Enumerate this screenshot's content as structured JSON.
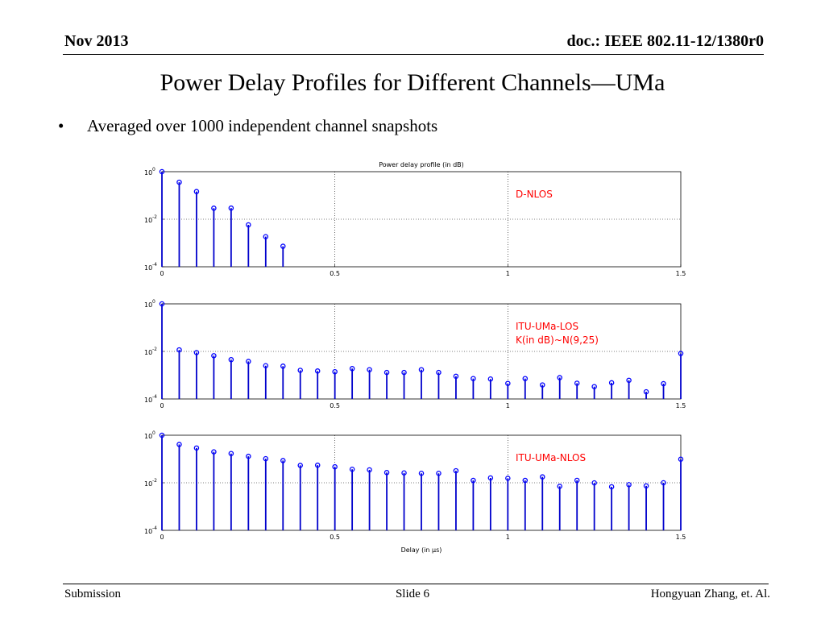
{
  "header": {
    "date": "Nov 2013",
    "doc": "doc.: IEEE 802.11-12/1380r0"
  },
  "slide_title": "Power Delay Profiles for Different Channels—UMa",
  "bullet": {
    "symbol": "•",
    "text": "Averaged over 1000 independent channel snapshots"
  },
  "footer": {
    "left": "Submission",
    "center": "Slide 6",
    "right": "Hongyuan Zhang, et. Al."
  },
  "colors": {
    "stem": "#0000cc",
    "marker": "#0000ff",
    "annotation": "#ff0000"
  },
  "chart_data": [
    {
      "type": "stem",
      "title": "Power delay profile (in dB)",
      "xlabel": "",
      "annotation": [
        "D-NLOS"
      ],
      "x_ticks": [
        "0",
        "0.5",
        "1",
        "1.5"
      ],
      "y_ticks": [
        "-4",
        "-2",
        "0"
      ],
      "xlim": [
        0,
        1.5
      ],
      "ylim_log10": [
        -4,
        0
      ],
      "y_scale": "log",
      "grid": true,
      "x": [
        0,
        0.05,
        0.1,
        0.15,
        0.2,
        0.25,
        0.3,
        0.35
      ],
      "values": [
        1.0,
        0.36,
        0.146,
        0.0292,
        0.0295,
        0.0058,
        0.00185,
        0.00073
      ]
    },
    {
      "type": "stem",
      "title": "",
      "xlabel": "",
      "annotation": [
        "ITU-UMa-LOS",
        "K(in dB)~N(9,25)"
      ],
      "x_ticks": [
        "0",
        "0.5",
        "1",
        "1.5"
      ],
      "y_ticks": [
        "-4",
        "-2",
        "0"
      ],
      "xlim": [
        0,
        1.5
      ],
      "ylim_log10": [
        -4,
        0
      ],
      "y_scale": "log",
      "grid": true,
      "x": [
        0,
        0.05,
        0.1,
        0.15,
        0.2,
        0.25,
        0.3,
        0.35,
        0.4,
        0.45,
        0.5,
        0.55,
        0.6,
        0.65,
        0.7,
        0.75,
        0.8,
        0.85,
        0.9,
        0.95,
        1.0,
        1.05,
        1.1,
        1.15,
        1.2,
        1.25,
        1.3,
        1.35,
        1.4,
        1.45,
        1.5
      ],
      "values": [
        1.0,
        0.0116,
        0.0089,
        0.0066,
        0.0045,
        0.0038,
        0.0025,
        0.0024,
        0.0016,
        0.0015,
        0.0014,
        0.0019,
        0.0017,
        0.0013,
        0.0013,
        0.0017,
        0.0013,
        0.0009,
        0.00072,
        0.00069,
        0.00045,
        0.00072,
        0.00039,
        0.00079,
        0.00046,
        0.00033,
        0.00048,
        0.00061,
        0.0002,
        0.00044,
        0.0082
      ]
    },
    {
      "type": "stem",
      "title": "",
      "xlabel": "Delay (in µs)",
      "annotation": [
        "ITU-UMa-NLOS"
      ],
      "x_ticks": [
        "0",
        "0.5",
        "1",
        "1.5"
      ],
      "y_ticks": [
        "-4",
        "-2",
        "0"
      ],
      "xlim": [
        0,
        1.5
      ],
      "ylim_log10": [
        -4,
        0
      ],
      "y_scale": "log",
      "grid": true,
      "x": [
        0,
        0.05,
        0.1,
        0.15,
        0.2,
        0.25,
        0.3,
        0.35,
        0.4,
        0.45,
        0.5,
        0.55,
        0.6,
        0.65,
        0.7,
        0.75,
        0.8,
        0.85,
        0.9,
        0.95,
        1.0,
        1.05,
        1.1,
        1.15,
        1.2,
        1.25,
        1.3,
        1.35,
        1.4,
        1.45,
        1.5
      ],
      "values": [
        1.0,
        0.41,
        0.29,
        0.2,
        0.17,
        0.13,
        0.103,
        0.086,
        0.054,
        0.055,
        0.047,
        0.037,
        0.035,
        0.027,
        0.026,
        0.025,
        0.025,
        0.032,
        0.0126,
        0.016,
        0.0155,
        0.0126,
        0.0177,
        0.0071,
        0.0127,
        0.0099,
        0.0068,
        0.0083,
        0.0074,
        0.01,
        0.098
      ]
    }
  ]
}
